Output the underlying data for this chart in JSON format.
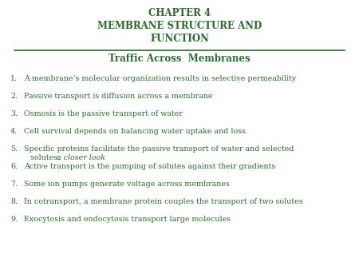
{
  "title_line1": "CHAPTER 4",
  "title_line2": "MEMBRANE STRUCTURE AND",
  "title_line3": "FUNCTION",
  "subtitle": "Traffic Across  Membranes",
  "title_color": "#2d6a2d",
  "subtitle_color": "#2d6a2d",
  "list_color": "#2d6a2d",
  "background_color": "#ffffff",
  "line_color": "#2d6a2d",
  "items": [
    {
      "num": "1.",
      "text": "A membrane’s molecular organization results in selective permeability",
      "italic_part": ""
    },
    {
      "num": "2.",
      "text": "Passive transport is diffusion across a membrane",
      "italic_part": ""
    },
    {
      "num": "3.",
      "text": "Osmosis is the passive transport of water",
      "italic_part": ""
    },
    {
      "num": "4.",
      "text": "Cell survival depends on balancing water uptake and loss",
      "italic_part": ""
    },
    {
      "num": "5.",
      "text_normal": "Specific proteins facilitate the passive transport of water and selected\nsolutes: ",
      "italic_part": "a closer look"
    },
    {
      "num": "6.",
      "text": "Active transport is the pumping of solutes against their gradients",
      "italic_part": ""
    },
    {
      "num": "7.",
      "text": "Some ion pumps generate voltage across membranes",
      "italic_part": ""
    },
    {
      "num": "8.",
      "text": "In cotransport, a membrane protein couples the transport of two solutes",
      "italic_part": ""
    },
    {
      "num": "9.",
      "text": "Exocytosis and endocytosis transport large molecules",
      "italic_part": ""
    }
  ],
  "title_fontsize": 8.5,
  "subtitle_fontsize": 8.5,
  "list_fontsize": 6.8
}
